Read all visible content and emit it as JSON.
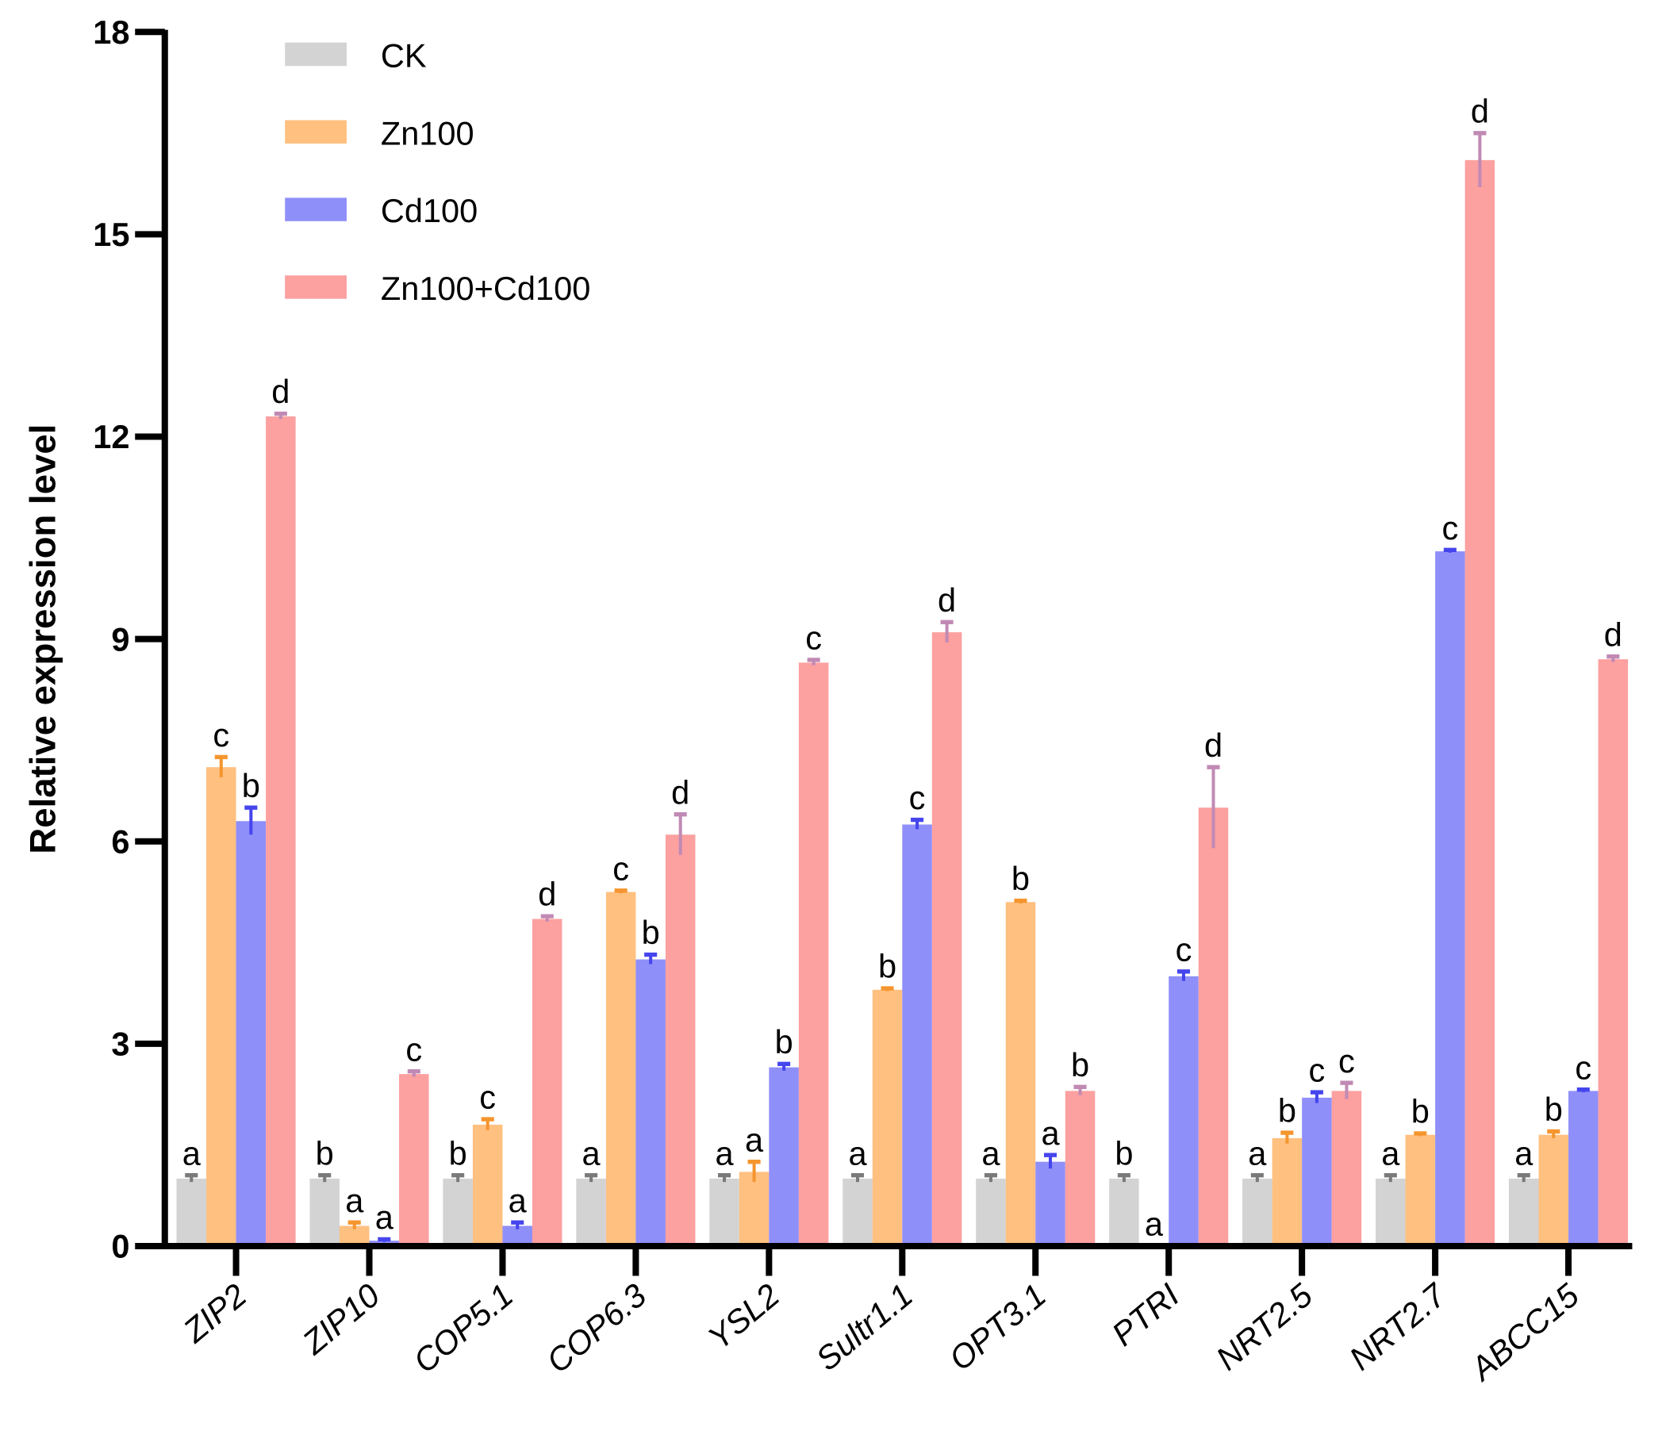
{
  "chart_data": {
    "type": "bar",
    "title": "",
    "xlabel": "",
    "ylabel": "Relative expression level",
    "ylim": [
      0,
      18
    ],
    "yticks": [
      0,
      3,
      6,
      9,
      12,
      15,
      18
    ],
    "grid": false,
    "legend_position": "top-left",
    "categories": [
      "ZIP2",
      "ZIP10",
      "COP5.1",
      "COP6.3",
      "YSL2",
      "Sultr1.1",
      "OPT3.1",
      "PTRI",
      "NRT2.5",
      "NRT2.7",
      "ABCC15"
    ],
    "series": [
      {
        "name": "CK",
        "color": "#d3d3d3",
        "error_color": "#7a7a7a",
        "values": [
          1,
          1,
          1,
          1,
          1,
          1,
          1,
          1,
          1,
          1,
          1
        ],
        "errors": [
          0.05,
          0.05,
          0.05,
          0.05,
          0.05,
          0.05,
          0.05,
          0.05,
          0.05,
          0.05,
          0.05
        ],
        "letters": [
          "a",
          "b",
          "b",
          "a",
          "a",
          "a",
          "a",
          "b",
          "a",
          "a",
          "a"
        ]
      },
      {
        "name": "Zn100",
        "color": "#ffc080",
        "error_color": "#f5952e",
        "values": [
          7.1,
          0.3,
          1.8,
          5.25,
          1.1,
          3.8,
          5.1,
          0.0,
          1.6,
          1.65,
          1.65
        ],
        "errors": [
          0.15,
          0.05,
          0.08,
          0.02,
          0.15,
          0.02,
          0.02,
          0.0,
          0.08,
          0.02,
          0.05
        ],
        "letters": [
          "c",
          "a",
          "c",
          "c",
          "a",
          "b",
          "b",
          "a",
          "b",
          "b",
          "b"
        ]
      },
      {
        "name": "Cd100",
        "color": "#8f8ffa",
        "error_color": "#4545ee",
        "values": [
          6.3,
          0.08,
          0.3,
          4.25,
          2.65,
          6.25,
          1.25,
          4.0,
          2.2,
          10.3,
          2.3
        ],
        "errors": [
          0.2,
          0.02,
          0.05,
          0.07,
          0.05,
          0.07,
          0.1,
          0.07,
          0.08,
          0.02,
          0.02
        ],
        "letters": [
          "b",
          "a",
          "a",
          "b",
          "b",
          "c",
          "a",
          "c",
          "c",
          "c",
          "c"
        ]
      },
      {
        "name": "Zn100+Cd100",
        "color": "#fca0a0",
        "error_color": "#c08ab4",
        "values": [
          12.3,
          2.55,
          4.85,
          6.1,
          8.65,
          9.1,
          2.3,
          6.5,
          2.3,
          16.1,
          8.7
        ],
        "errors": [
          0.04,
          0.04,
          0.04,
          0.3,
          0.04,
          0.15,
          0.06,
          0.6,
          0.12,
          0.4,
          0.04
        ],
        "letters": [
          "d",
          "c",
          "d",
          "d",
          "c",
          "d",
          "b",
          "d",
          "c",
          "d",
          "d"
        ]
      }
    ]
  }
}
